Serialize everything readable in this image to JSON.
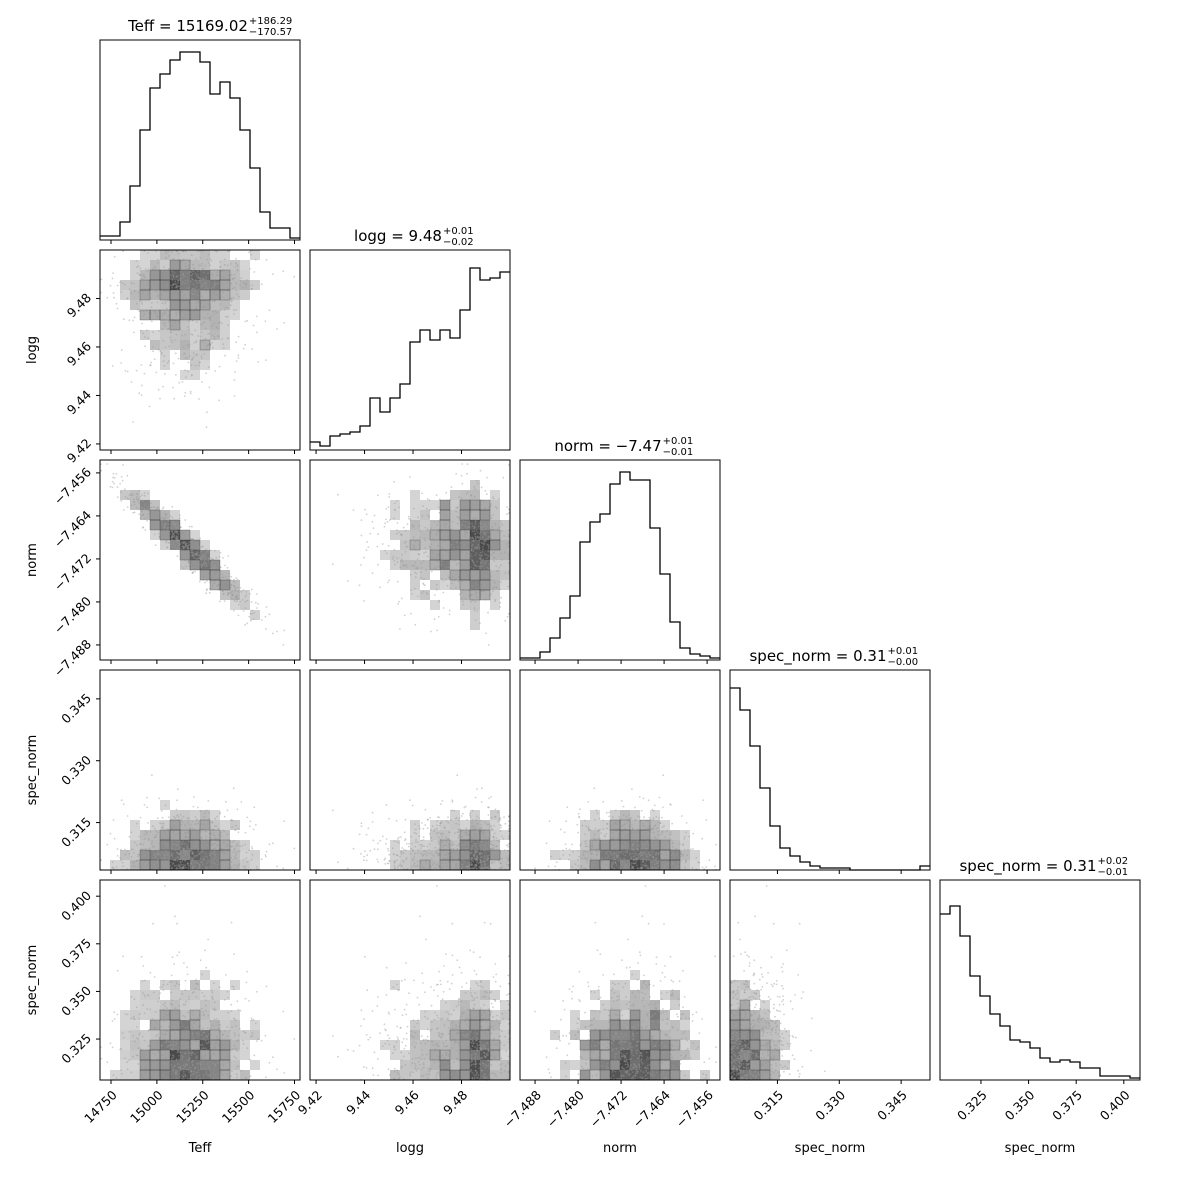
{
  "chart_data": {
    "type": "corner",
    "colors": {
      "line": "#000000",
      "density": "#444444",
      "point": "#999999"
    },
    "parameters": [
      "Teff",
      "logg",
      "norm",
      "spec_norm",
      "spec_norm"
    ],
    "axis_labels": [
      "Teff",
      "logg",
      "norm",
      "spec_norm",
      "spec_norm"
    ],
    "ranges": [
      [
        14690,
        15780
      ],
      [
        9.4175,
        9.5
      ],
      [
        -7.4908,
        -7.4536
      ],
      [
        0.3035,
        0.352
      ],
      [
        0.3035,
        0.4085
      ]
    ],
    "ticks": [
      [
        "14750",
        "15000",
        "15250",
        "15500",
        "15750"
      ],
      [
        "9.42",
        "9.44",
        "9.46",
        "9.48"
      ],
      [
        "−7.488",
        "−7.480",
        "−7.472",
        "−7.464",
        "−7.456"
      ],
      [
        "0.315",
        "0.330",
        "0.345"
      ],
      [
        "0.325",
        "0.350",
        "0.375",
        "0.400"
      ]
    ],
    "tick_values": [
      [
        14750,
        15000,
        15250,
        15500,
        15750
      ],
      [
        9.42,
        9.44,
        9.46,
        9.48
      ],
      [
        -7.488,
        -7.48,
        -7.472,
        -7.464,
        -7.456
      ],
      [
        0.315,
        0.33,
        0.345
      ],
      [
        0.325,
        0.35,
        0.375,
        0.4
      ]
    ],
    "titles": [
      {
        "label": "Teff",
        "value": "15169.02",
        "plus": "+186.29",
        "minus": "−170.57"
      },
      {
        "label": "logg",
        "value": "9.48",
        "plus": "+0.01",
        "minus": "−0.02"
      },
      {
        "label": "norm",
        "value": "−7.47",
        "plus": "+0.01",
        "minus": "−0.01"
      },
      {
        "label": "spec_norm",
        "value": "0.31",
        "plus": "+0.01",
        "minus": "−0.00"
      },
      {
        "label": "spec_norm",
        "value": "0.31",
        "plus": "+0.02",
        "minus": "−0.01"
      }
    ],
    "hist1d_relative": [
      [
        0.02,
        0.02,
        0.09,
        0.27,
        0.55,
        0.76,
        0.83,
        0.9,
        0.94,
        0.94,
        0.89,
        0.73,
        0.79,
        0.71,
        0.55,
        0.36,
        0.14,
        0.06,
        0.06,
        0.01
      ],
      [
        0.04,
        0.02,
        0.07,
        0.08,
        0.09,
        0.12,
        0.26,
        0.19,
        0.26,
        0.33,
        0.54,
        0.6,
        0.55,
        0.6,
        0.56,
        0.7,
        0.91,
        0.85,
        0.86,
        0.89
      ],
      [
        0.01,
        0.01,
        0.04,
        0.11,
        0.21,
        0.32,
        0.59,
        0.69,
        0.73,
        0.88,
        0.94,
        0.9,
        0.9,
        0.66,
        0.43,
        0.19,
        0.06,
        0.03,
        0.02,
        0.01
      ],
      [
        0.91,
        0.8,
        0.62,
        0.41,
        0.22,
        0.11,
        0.07,
        0.04,
        0.02,
        0.01,
        0.01,
        0.01,
        0.0,
        0.0,
        0.0,
        0.0,
        0.0,
        0.0,
        0.0,
        0.02
      ],
      [
        0.83,
        0.87,
        0.72,
        0.52,
        0.42,
        0.33,
        0.27,
        0.2,
        0.19,
        0.16,
        0.11,
        0.09,
        0.1,
        0.09,
        0.06,
        0.06,
        0.02,
        0.02,
        0.02,
        0.01
      ]
    ],
    "samples": [
      {
        "mean": 15169.02,
        "sd": 180.0
      },
      {
        "mean": 9.482,
        "sd": 0.018
      },
      {
        "mean": -7.47,
        "sd": 0.006
      },
      {
        "mean": 0.31,
        "sd": 0.01
      },
      {
        "mean": 0.31,
        "sd": 0.02
      }
    ]
  }
}
